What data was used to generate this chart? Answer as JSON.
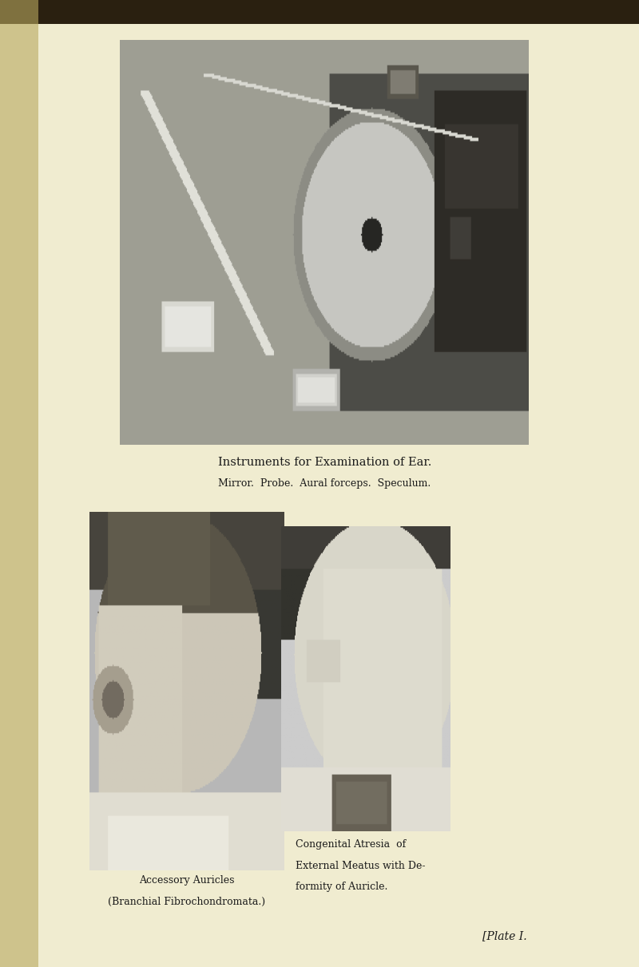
{
  "bg_color": "#f0ecd0",
  "page_bg": "#ede8ca",
  "title1": "Instruments for Examination of Ear.",
  "subtitle1": "Mirror.  Probe.  Aural forceps.  Speculum.",
  "caption_left_line1": "Accessory Auricles",
  "caption_left_line2": "(Branchial Fibrochondromata.)",
  "caption_right_line1": "Congenital Atresia  of",
  "caption_right_line2": "External Meatus with De-",
  "caption_right_line3": "formity of Auricle.",
  "plate_text": "[Plate I.",
  "title1_fontsize": 10.5,
  "subtitle1_fontsize": 9.0,
  "caption_fontsize": 9.0,
  "plate_fontsize": 10,
  "text_color": "#1a1a1a",
  "left_edge_color": "#b8a860",
  "top_dark_strip": "#2a2010"
}
